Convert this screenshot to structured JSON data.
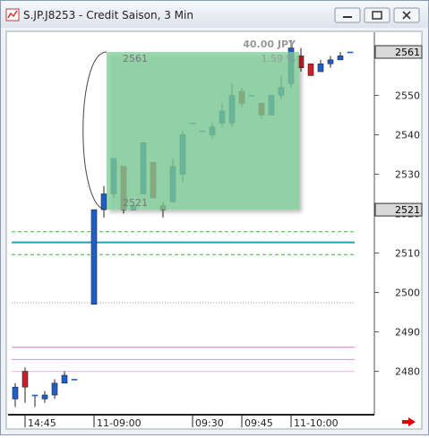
{
  "window": {
    "title": "S.JP.J8253 - Credit Saison, 3 Min"
  },
  "chart_data": {
    "type": "candlestick",
    "categories": [
      null,
      "14:45",
      null,
      null,
      null,
      null,
      null,
      null,
      "11-09:00",
      null,
      null,
      null,
      null,
      null,
      null,
      null,
      null,
      null,
      "09:30",
      null,
      null,
      null,
      null,
      "09:45",
      null,
      null,
      null,
      null,
      "11-10:00",
      null,
      null,
      null,
      null,
      null,
      null
    ],
    "open": [
      2473,
      2480,
      2474,
      2473,
      2474,
      2477,
      2478,
      null,
      2497,
      2521,
      2525,
      2532,
      2521,
      2525,
      2533,
      2522,
      2523,
      2530,
      2543,
      2541,
      2540,
      2543,
      2543,
      2551,
      2550,
      2548,
      2545,
      2550,
      2553,
      2560,
      2558,
      2556,
      2558,
      2559,
      2561
    ],
    "high": [
      2477,
      2481,
      2474,
      2475,
      2478,
      2480,
      2478,
      null,
      2521,
      2527,
      2534,
      2532,
      2522,
      2538,
      2533,
      2523,
      2534,
      2541,
      2543,
      2541,
      2543,
      2548,
      2553,
      2552,
      2550,
      2548,
      2550,
      2555,
      2564,
      2562,
      2558,
      2559,
      2560,
      2561,
      2561
    ],
    "low": [
      2471,
      2472,
      2471,
      2472,
      2473,
      2477,
      2478,
      null,
      2497,
      2519,
      2524,
      2520,
      2521,
      2525,
      2524,
      2519,
      2523,
      2528,
      2543,
      2541,
      2539,
      2542,
      2542,
      2547,
      2550,
      2544,
      2545,
      2549,
      2552,
      2556,
      2555,
      2556,
      2557,
      2559,
      2561
    ],
    "close": [
      2476,
      2476,
      2474,
      2474,
      2477,
      2479,
      2478,
      null,
      2521,
      2525,
      2534,
      2521,
      2522,
      2538,
      2524,
      2521,
      2532,
      2540,
      2543,
      2541,
      2542,
      2546,
      2550,
      2548,
      2550,
      2545,
      2550,
      2552,
      2562,
      2557,
      2555,
      2558,
      2559,
      2560,
      2561
    ],
    "up_color": "#1f5fc8",
    "down_color": "#c8202a",
    "ylim": [
      2469,
      2566
    ],
    "yticks": [
      2480,
      2490,
      2500,
      2510,
      2520,
      2530,
      2540,
      2550
    ],
    "price_markers": [
      2561,
      2521
    ],
    "levels": [
      {
        "value": 2512.7,
        "color": "#1aa3c4",
        "style": "solid"
      },
      {
        "value": 2515.4,
        "color": "#33bb33",
        "style": "dashed"
      },
      {
        "value": 2509.6,
        "color": "#33bb33",
        "style": "dashed"
      },
      {
        "value": 2497.4,
        "color": "#999999",
        "style": "dotted"
      },
      {
        "value": 2486.1,
        "color": "#e070c8",
        "style": "solid"
      },
      {
        "value": 2483,
        "color": "#e88ad4",
        "style": "solid"
      },
      {
        "value": 2480,
        "color": "#f2b6da",
        "style": "solid"
      }
    ],
    "measure": {
      "high": 2561,
      "low": 2521,
      "change_label": "40.00 JPY",
      "percent_label": "1.59 %",
      "color": "#7fcf98"
    }
  }
}
